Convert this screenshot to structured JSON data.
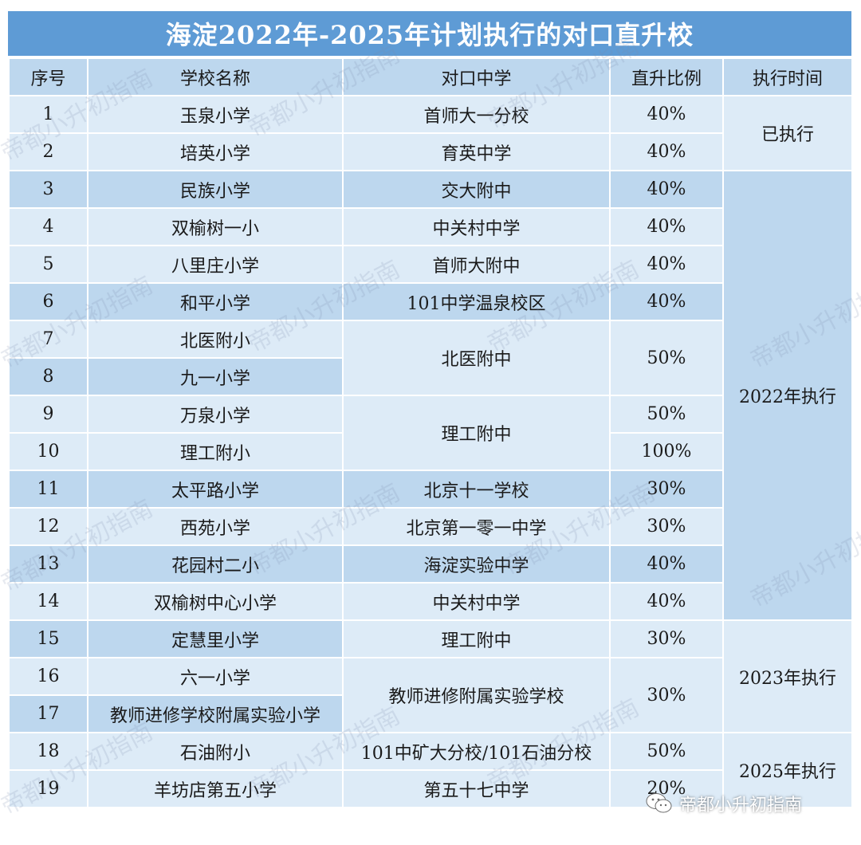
{
  "title": "海淀2022年-2025年计划执行的对口直升校",
  "headers": {
    "no": "序号",
    "school": "学校名称",
    "middle": "对口中学",
    "ratio": "直升比例",
    "time": "执行时间"
  },
  "rows": [
    {
      "no": "1",
      "school": "玉泉小学",
      "middle": "首师大一分校",
      "ratio": "40%"
    },
    {
      "no": "2",
      "school": "培英小学",
      "middle": "育英中学",
      "ratio": "40%"
    },
    {
      "no": "3",
      "school": "民族小学",
      "middle": "交大附中",
      "ratio": "40%"
    },
    {
      "no": "4",
      "school": "双榆树一小",
      "middle": "中关村中学",
      "ratio": "40%"
    },
    {
      "no": "5",
      "school": "八里庄小学",
      "middle": "首师大附中",
      "ratio": "40%"
    },
    {
      "no": "6",
      "school": "和平小学",
      "middle": "101中学温泉校区",
      "ratio": "40%"
    },
    {
      "no": "7",
      "school": "北医附小",
      "middle": "北医附中",
      "ratio": "50%"
    },
    {
      "no": "8",
      "school": "九一小学"
    },
    {
      "no": "9",
      "school": "万泉小学",
      "middle": "理工附中",
      "ratio": "50%"
    },
    {
      "no": "10",
      "school": "理工附小",
      "ratio": "100%"
    },
    {
      "no": "11",
      "school": "太平路小学",
      "middle": "北京十一学校",
      "ratio": "30%"
    },
    {
      "no": "12",
      "school": "西苑小学",
      "middle": "北京第一零一中学",
      "ratio": "30%"
    },
    {
      "no": "13",
      "school": "花园村二小",
      "middle": "海淀实验中学",
      "ratio": "40%"
    },
    {
      "no": "14",
      "school": "双榆树中心小学",
      "middle": "中关村中学",
      "ratio": "40%"
    },
    {
      "no": "15",
      "school": "定慧里小学",
      "middle": "理工附中",
      "ratio": "30%"
    },
    {
      "no": "16",
      "school": "六一小学",
      "middle": "教师进修附属实验学校",
      "ratio": "30%"
    },
    {
      "no": "17",
      "school": "教师进修学校附属实验小学"
    },
    {
      "no": "18",
      "school": "石油附小",
      "middle": "101中矿大分校/101石油分校",
      "ratio": "50%"
    },
    {
      "no": "19",
      "school": "羊坊店第五小学",
      "middle": "第五十七中学",
      "ratio": "20%"
    }
  ],
  "groups": {
    "done": "已执行",
    "y2022": "2022年执行",
    "y2023": "2023年执行",
    "y2025": "2025年执行"
  },
  "watermark": "帝都小升初指南",
  "wechat_label": "帝都小升初指南",
  "colors": {
    "title_bg": "#5e9bd5",
    "header_bg": "#bdd7ee",
    "row_light": "#ddebf7",
    "row_dark": "#bdd7ee"
  }
}
